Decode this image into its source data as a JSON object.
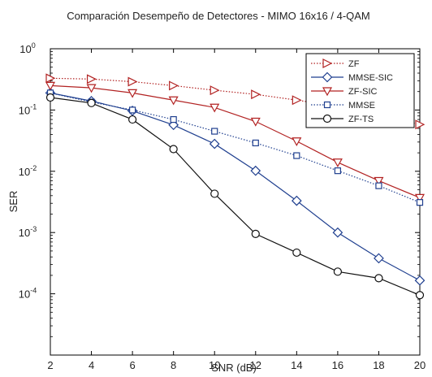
{
  "chart_data": {
    "type": "line",
    "title": "Comparación Desempeño de Detectores - MIMO 16x16 / 4-QAM",
    "xlabel": "SNR (dB)",
    "ylabel": "SER",
    "y_scale": "log",
    "xlim": [
      2,
      20
    ],
    "ylim_exponent": [
      -5,
      0
    ],
    "x_ticks": [
      2,
      4,
      6,
      8,
      10,
      12,
      14,
      16,
      18,
      20
    ],
    "y_ticks": [
      {
        "base": "10",
        "exp": "0"
      },
      {
        "base": "10",
        "exp": "-1"
      },
      {
        "base": "10",
        "exp": "-2"
      },
      {
        "base": "10",
        "exp": "-3"
      },
      {
        "base": "10",
        "exp": "-4"
      }
    ],
    "grid": false,
    "legend_position": "top-right",
    "x": [
      2,
      4,
      6,
      8,
      10,
      12,
      14,
      16,
      18,
      20
    ],
    "series": [
      {
        "name": "ZF",
        "color": "#b22222",
        "line": "dotted",
        "marker": "triangle-right",
        "values": [
          0.33,
          0.32,
          0.29,
          0.25,
          0.21,
          0.18,
          0.145,
          0.115,
          0.085,
          0.058
        ]
      },
      {
        "name": "MMSE-SIC",
        "color": "#1f3f8f",
        "line": "solid",
        "marker": "diamond",
        "values": [
          0.19,
          0.14,
          0.097,
          0.057,
          0.028,
          0.0102,
          0.0033,
          0.001,
          0.00038,
          0.000165
        ]
      },
      {
        "name": "ZF-SIC",
        "color": "#b22222",
        "line": "solid",
        "marker": "triangle-down",
        "values": [
          0.25,
          0.23,
          0.19,
          0.145,
          0.11,
          0.065,
          0.031,
          0.014,
          0.007,
          0.0037
        ]
      },
      {
        "name": "MMSE",
        "color": "#1f3f8f",
        "line": "dotted",
        "marker": "square",
        "values": [
          0.19,
          0.135,
          0.1,
          0.07,
          0.045,
          0.029,
          0.018,
          0.0102,
          0.0058,
          0.0031
        ]
      },
      {
        "name": "ZF-TS",
        "color": "#111111",
        "line": "solid",
        "marker": "circle",
        "values": [
          0.16,
          0.13,
          0.07,
          0.023,
          0.0043,
          0.00095,
          0.00047,
          0.00023,
          0.00018,
          9.5e-05
        ]
      }
    ]
  }
}
